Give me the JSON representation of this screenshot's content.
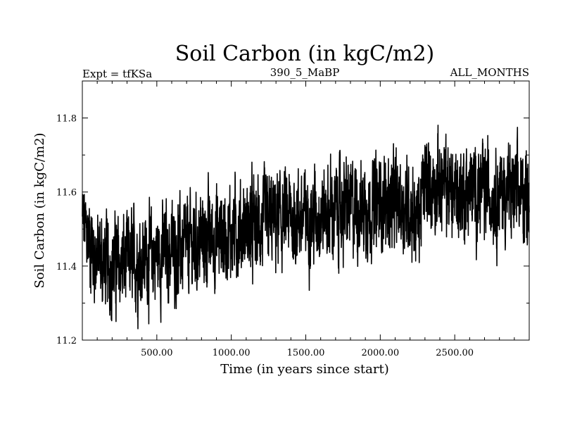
{
  "chart_data": {
    "type": "line",
    "title": "Soil Carbon (in kgC/m2)",
    "subtitle_left": "Expt = tfKSa",
    "subtitle_center": "390_5_MaBP",
    "subtitle_right": "ALL_MONTHS",
    "xlabel": "Time (in years since start)",
    "ylabel": "Soil Carbon (in kgC/m2)",
    "xlim": [
      0,
      3000
    ],
    "ylim": [
      11.2,
      11.9
    ],
    "xticks": [
      500,
      1000,
      1500,
      2000,
      2500
    ],
    "xtick_labels": [
      "500.00",
      "1000.00",
      "1500.00",
      "2000.00",
      "2500.00"
    ],
    "yticks": [
      11.2,
      11.4,
      11.6,
      11.8
    ],
    "ytick_labels": [
      "11.2",
      "11.4",
      "11.6",
      "11.8"
    ],
    "series": [
      {
        "name": "Soil Carbon",
        "color": "#000000",
        "trend_x": [
          0,
          100,
          200,
          300,
          400,
          500,
          600,
          700,
          800,
          900,
          1000,
          1100,
          1200,
          1300,
          1400,
          1500,
          1600,
          1700,
          1800,
          1900,
          2000,
          2100,
          2200,
          2250,
          2300,
          2400,
          2500,
          2600,
          2700,
          2800,
          2900,
          3000
        ],
        "trend_y": [
          11.52,
          11.42,
          11.4,
          11.41,
          11.42,
          11.43,
          11.44,
          11.45,
          11.47,
          11.48,
          11.49,
          11.5,
          11.51,
          11.52,
          11.53,
          11.53,
          11.54,
          11.55,
          11.56,
          11.56,
          11.57,
          11.57,
          11.56,
          11.52,
          11.62,
          11.62,
          11.6,
          11.6,
          11.6,
          11.6,
          11.59,
          11.6
        ],
        "noise_amplitude": 0.12,
        "n_points": 3000
      }
    ]
  }
}
